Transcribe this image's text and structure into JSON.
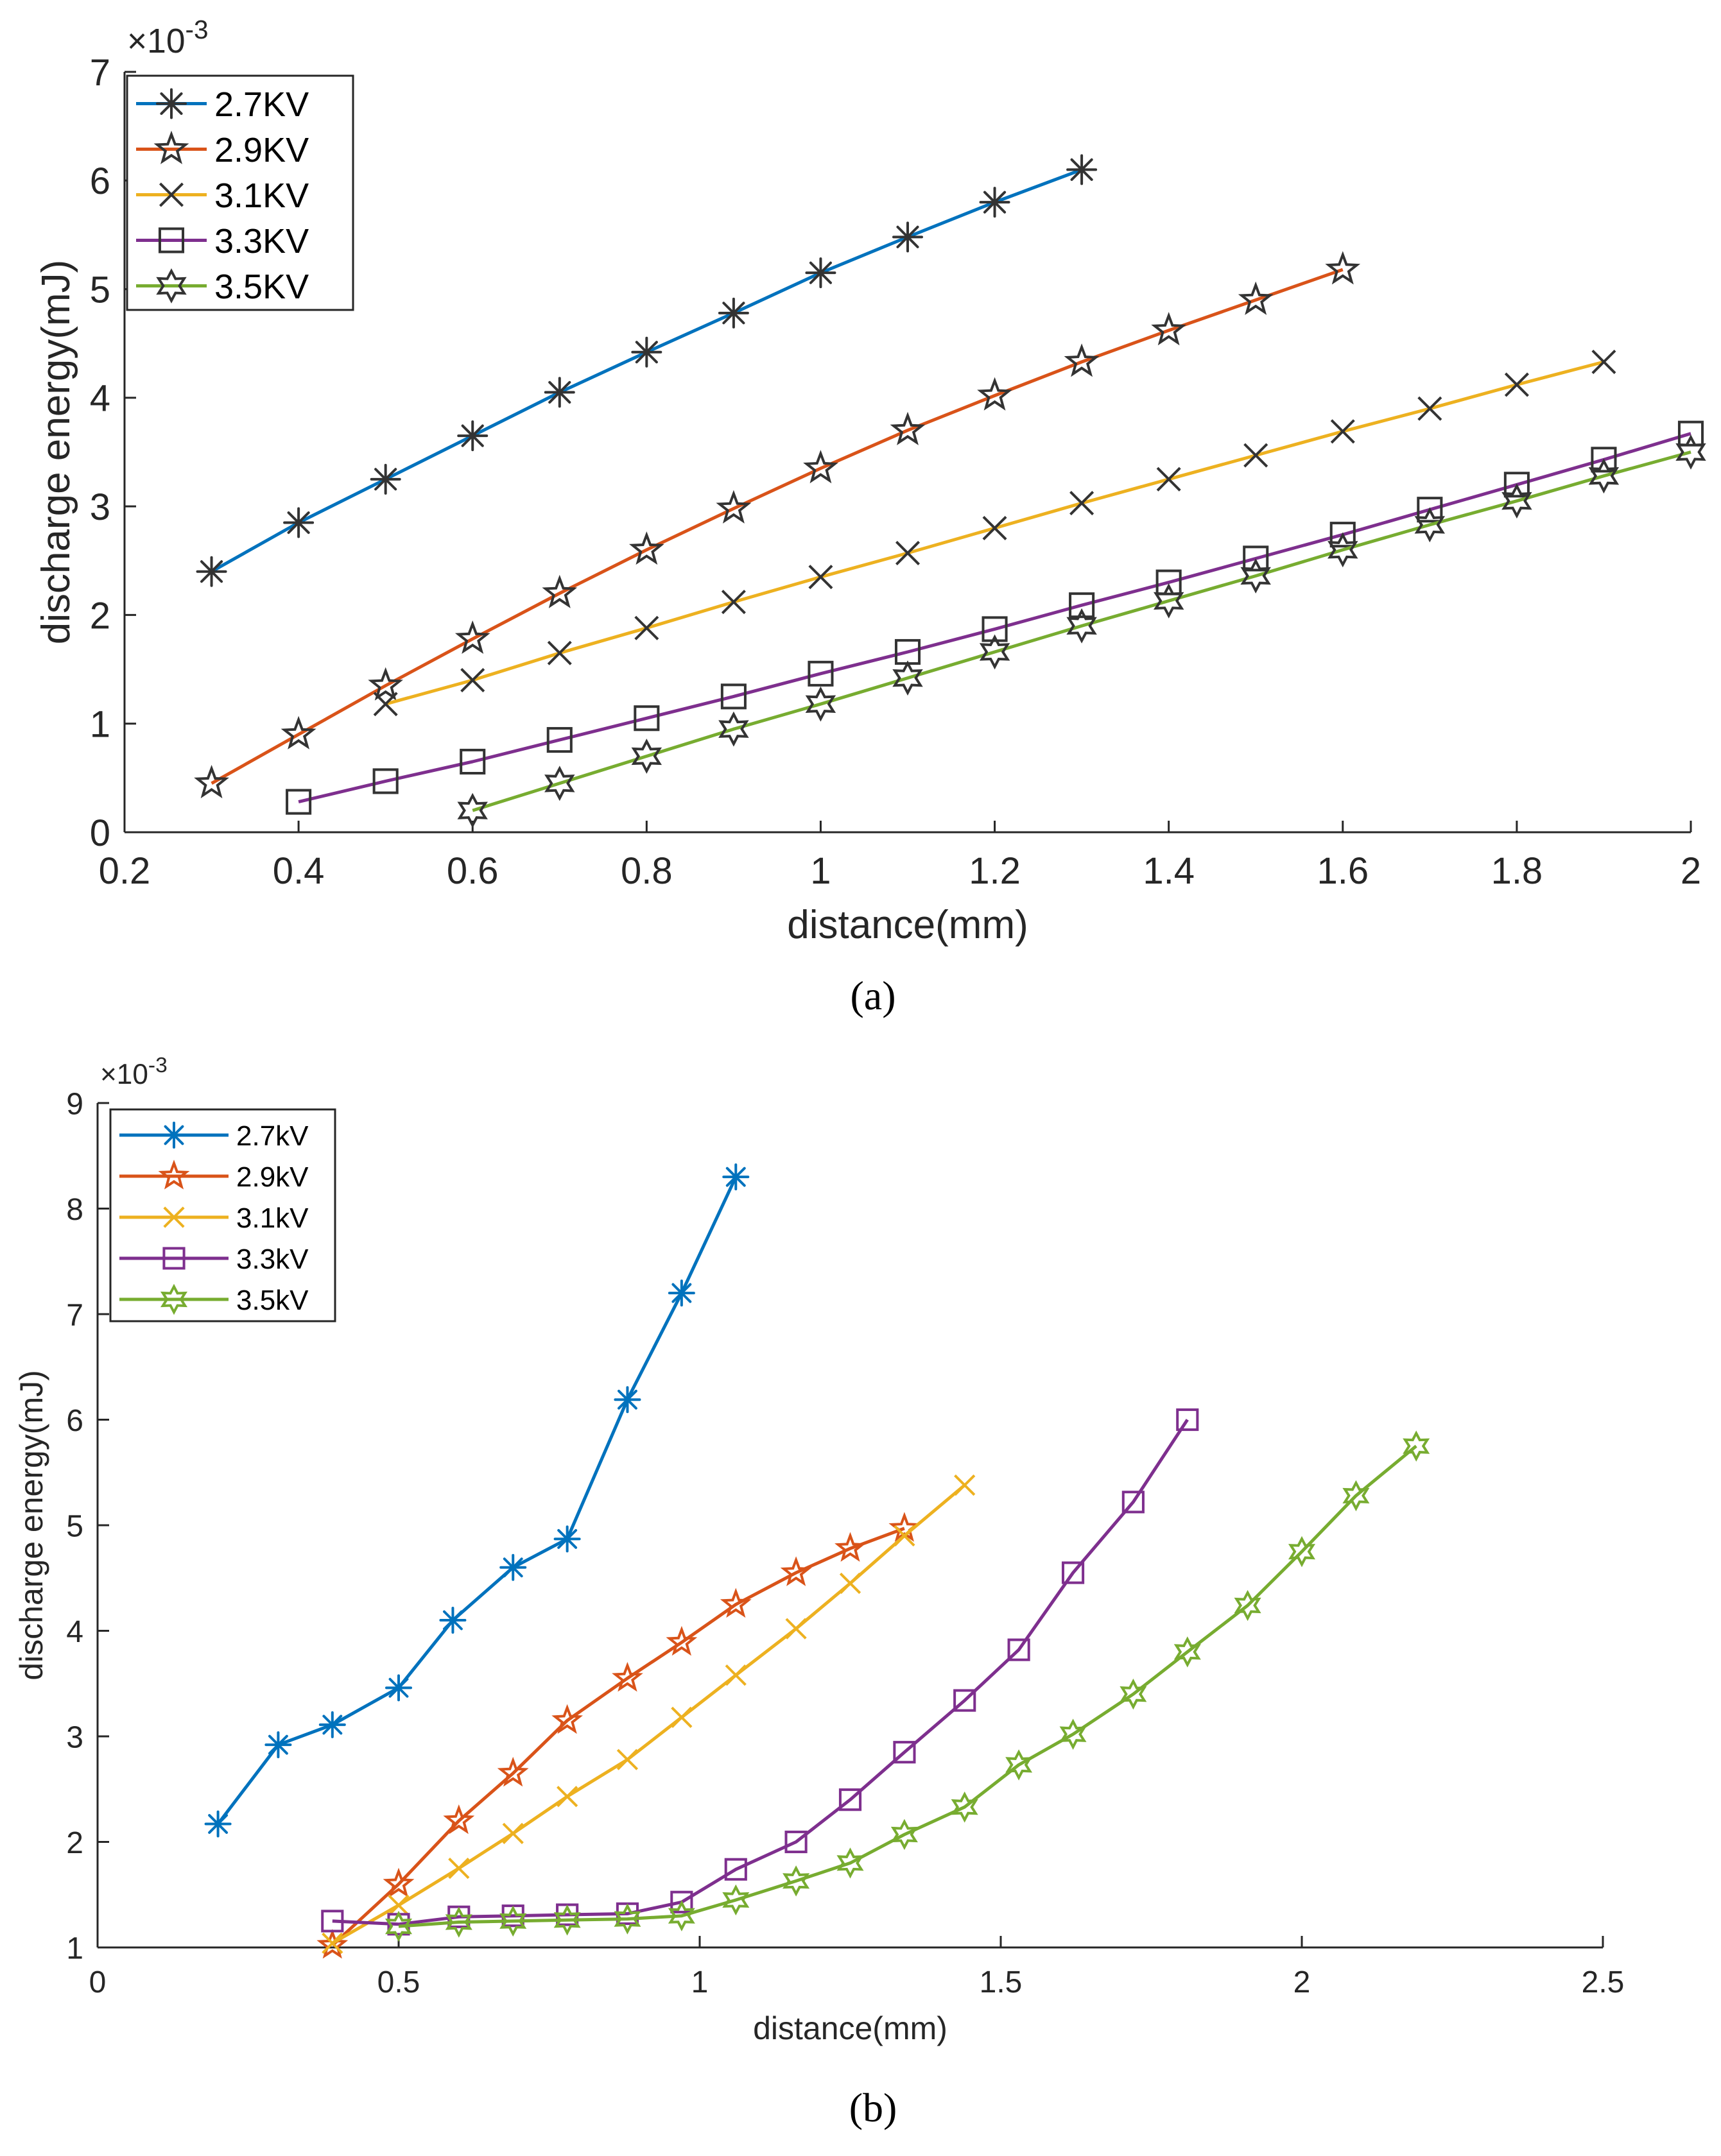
{
  "colors": {
    "blue": "#0072BD",
    "orange": "#D95319",
    "yellow": "#EDB120",
    "purple": "#7E2F8E",
    "green": "#77AC30",
    "marker_dark": "#333333"
  },
  "chart_data": [
    {
      "type": "line",
      "panel_label": "(a)",
      "xlabel": "distance(mm)",
      "ylabel": "discharge energy(mJ)",
      "exponent_label": "×10",
      "exponent_sup": "-3",
      "xlim": [
        0.2,
        2
      ],
      "ylim": [
        0,
        7
      ],
      "xticks": [
        "0.2",
        "0.4",
        "0.6",
        "0.8",
        "1",
        "1.2",
        "1.4",
        "1.6",
        "1.8",
        "2"
      ],
      "yticks": [
        "0",
        "1",
        "2",
        "3",
        "4",
        "5",
        "6",
        "7"
      ],
      "legend_position": "top-left",
      "marker_color": "dark",
      "series": [
        {
          "name": "2.7KV",
          "color": "blue",
          "marker": "asterisk",
          "x": [
            0.3,
            0.4,
            0.5,
            0.6,
            0.7,
            0.8,
            0.9,
            1.0,
            1.1,
            1.2,
            1.3
          ],
          "y": [
            2.4,
            2.85,
            3.25,
            3.65,
            4.05,
            4.42,
            4.78,
            5.15,
            5.48,
            5.8,
            6.1
          ]
        },
        {
          "name": "2.9KV",
          "color": "orange",
          "marker": "star5",
          "x": [
            0.3,
            0.4,
            0.5,
            0.6,
            0.7,
            0.8,
            0.9,
            1.0,
            1.1,
            1.2,
            1.3,
            1.4,
            1.5,
            1.6
          ],
          "y": [
            0.45,
            0.9,
            1.35,
            1.78,
            2.2,
            2.6,
            2.98,
            3.35,
            3.7,
            4.02,
            4.33,
            4.62,
            4.9,
            5.18
          ]
        },
        {
          "name": "3.1KV",
          "color": "yellow",
          "marker": "x",
          "x": [
            0.5,
            0.6,
            0.7,
            0.8,
            0.9,
            1.0,
            1.1,
            1.2,
            1.3,
            1.4,
            1.5,
            1.6,
            1.7,
            1.8,
            1.9
          ],
          "y": [
            1.18,
            1.4,
            1.65,
            1.88,
            2.12,
            2.35,
            2.57,
            2.8,
            3.03,
            3.25,
            3.47,
            3.69,
            3.9,
            4.12,
            4.33
          ]
        },
        {
          "name": "3.3KV",
          "color": "purple",
          "marker": "square",
          "x": [
            0.4,
            0.5,
            0.6,
            0.7,
            0.8,
            0.9,
            1.0,
            1.1,
            1.2,
            1.3,
            1.4,
            1.5,
            1.6,
            1.7,
            1.8,
            1.9,
            2.0
          ],
          "y": [
            0.28,
            0.47,
            0.65,
            0.85,
            1.05,
            1.25,
            1.46,
            1.66,
            1.87,
            2.09,
            2.3,
            2.52,
            2.74,
            2.97,
            3.2,
            3.43,
            3.67
          ]
        },
        {
          "name": "3.5KV",
          "color": "green",
          "marker": "star6",
          "x": [
            0.6,
            0.7,
            0.8,
            0.9,
            1.0,
            1.1,
            1.2,
            1.3,
            1.4,
            1.5,
            1.6,
            1.7,
            1.8,
            1.9,
            2.0
          ],
          "y": [
            0.2,
            0.45,
            0.7,
            0.95,
            1.18,
            1.42,
            1.66,
            1.9,
            2.13,
            2.36,
            2.6,
            2.83,
            3.05,
            3.28,
            3.5
          ]
        }
      ]
    },
    {
      "type": "line",
      "panel_label": "(b)",
      "xlabel": "distance(mm)",
      "ylabel": "discharge energy(mJ)",
      "exponent_label": "×10",
      "exponent_sup": "-3",
      "xlim": [
        0,
        2.5
      ],
      "ylim": [
        1,
        9
      ],
      "xticks": [
        "0",
        "0.5",
        "1",
        "1.5",
        "2",
        "2.5"
      ],
      "yticks": [
        "1",
        "2",
        "3",
        "4",
        "5",
        "6",
        "7",
        "8",
        "9"
      ],
      "legend_position": "top-left",
      "marker_color": "series",
      "series": [
        {
          "name": "2.7kV",
          "color": "blue",
          "marker": "asterisk",
          "x": [
            0.2,
            0.3,
            0.39,
            0.5,
            0.59,
            0.69,
            0.78,
            0.88,
            0.97,
            1.06
          ],
          "y": [
            2.17,
            2.92,
            3.11,
            3.46,
            4.1,
            4.6,
            4.87,
            6.19,
            7.2,
            8.3
          ]
        },
        {
          "name": "2.9kV",
          "color": "orange",
          "marker": "star5",
          "x": [
            0.39,
            0.5,
            0.6,
            0.69,
            0.78,
            0.88,
            0.97,
            1.06,
            1.16,
            1.25,
            1.34
          ],
          "y": [
            1.02,
            1.6,
            2.2,
            2.65,
            3.15,
            3.55,
            3.89,
            4.25,
            4.55,
            4.78,
            4.97
          ]
        },
        {
          "name": "3.1kV",
          "color": "yellow",
          "marker": "x",
          "x": [
            0.39,
            0.5,
            0.6,
            0.69,
            0.78,
            0.88,
            0.97,
            1.06,
            1.16,
            1.25,
            1.34,
            1.44
          ],
          "y": [
            1.04,
            1.4,
            1.75,
            2.08,
            2.43,
            2.78,
            3.18,
            3.58,
            4.02,
            4.45,
            4.9,
            5.38
          ]
        },
        {
          "name": "3.3kV",
          "color": "purple",
          "marker": "square",
          "x": [
            0.39,
            0.5,
            0.6,
            0.69,
            0.78,
            0.88,
            0.97,
            1.06,
            1.16,
            1.25,
            1.34,
            1.44,
            1.53,
            1.62,
            1.72,
            1.81
          ],
          "y": [
            1.25,
            1.22,
            1.29,
            1.3,
            1.31,
            1.32,
            1.43,
            1.74,
            2.0,
            2.4,
            2.85,
            3.34,
            3.82,
            4.55,
            5.22,
            6.0
          ]
        },
        {
          "name": "3.5kV",
          "color": "green",
          "marker": "star6",
          "x": [
            0.5,
            0.6,
            0.69,
            0.78,
            0.88,
            0.97,
            1.06,
            1.16,
            1.25,
            1.34,
            1.44,
            1.53,
            1.62,
            1.72,
            1.81,
            1.91,
            2.0,
            2.09,
            2.19
          ],
          "y": [
            1.2,
            1.24,
            1.25,
            1.26,
            1.27,
            1.3,
            1.45,
            1.63,
            1.8,
            2.07,
            2.33,
            2.73,
            3.02,
            3.4,
            3.8,
            4.24,
            4.75,
            5.28,
            5.75
          ]
        }
      ]
    }
  ]
}
